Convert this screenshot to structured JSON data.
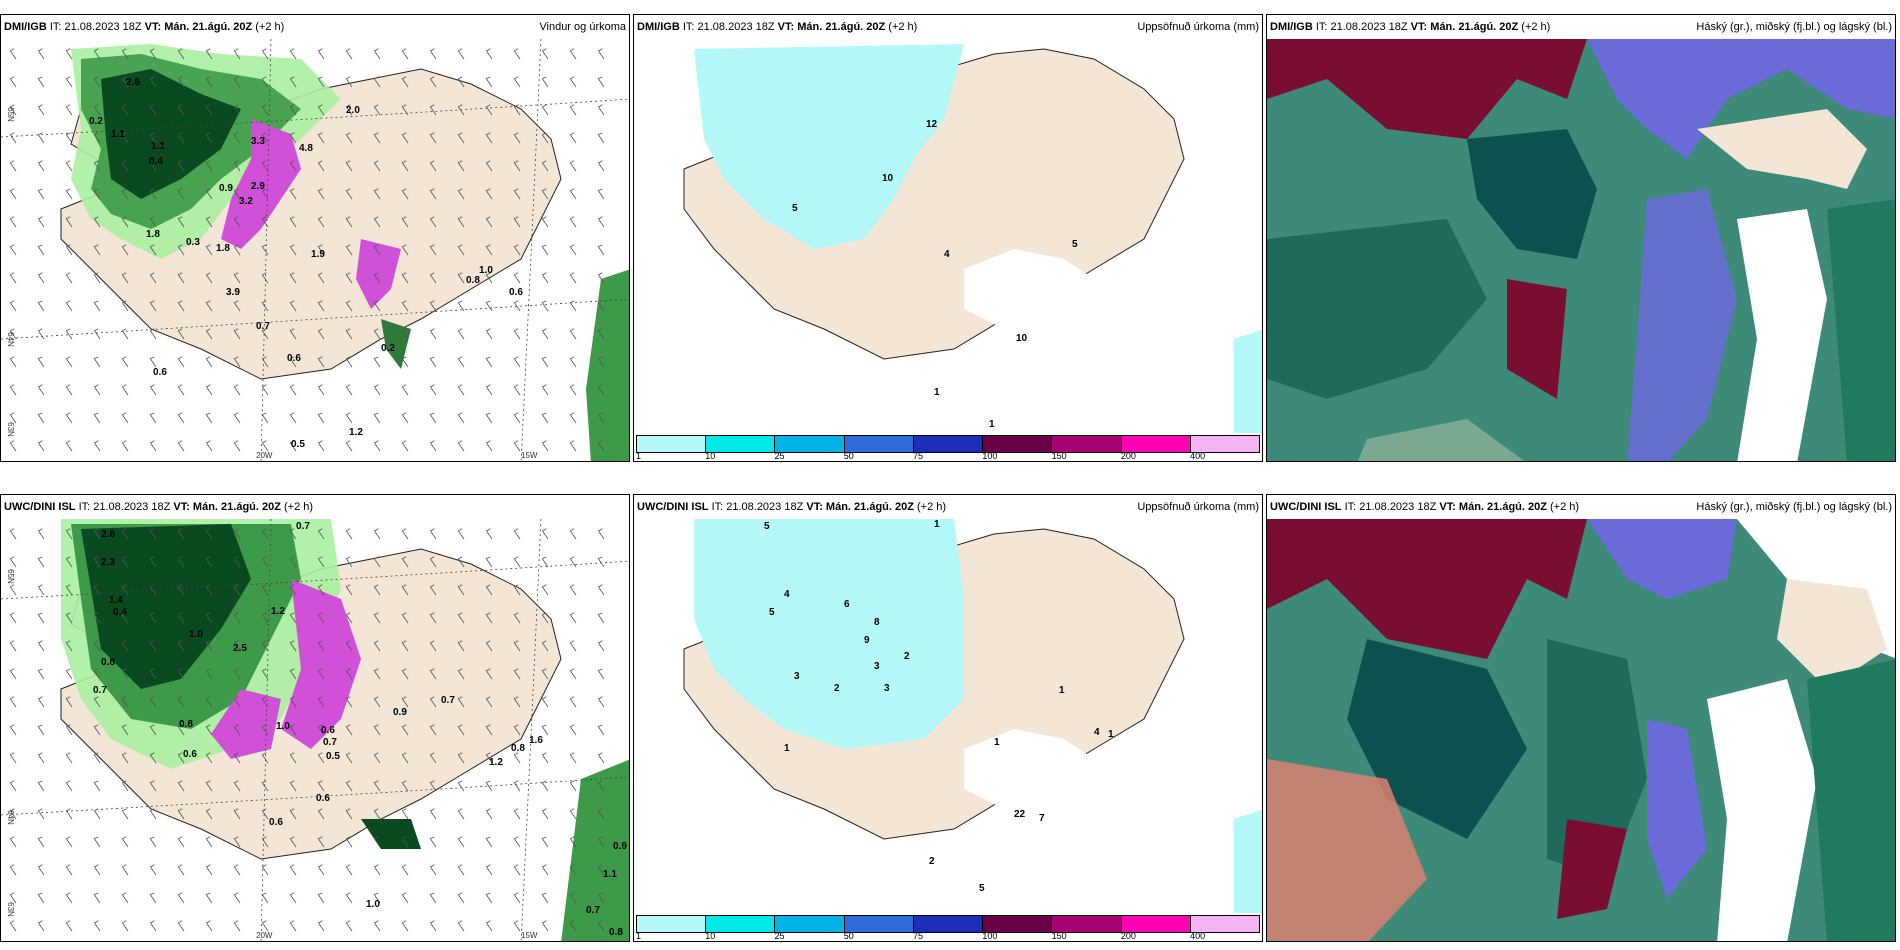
{
  "panels": [
    {
      "id": "p1",
      "model": "DMI/IGB",
      "it": "IT: 21.08.2023 18Z",
      "vt_label": "VT:",
      "vt": "Mán. 21.ágú. 20Z",
      "lead": "(+2 h)",
      "field": "Vindur og úrkoma",
      "axis": {
        "lat1": "65N",
        "lat2": "64N",
        "lat3": "63N",
        "lon1": "20W",
        "lon2": "15W"
      },
      "values": [
        "2.6",
        "0.2",
        "1.1",
        "0.4",
        "1.1",
        "3.3",
        "4.8",
        "0.9",
        "2.9",
        "3.2",
        "1.8",
        "0.3",
        "3.9",
        "1.8",
        "1.0",
        "0.6",
        "0.7",
        "0.6",
        "0.2",
        "0.6",
        "0.5",
        "1.2",
        "1.9",
        "0.8",
        "2.0"
      ]
    },
    {
      "id": "p2",
      "model": "DMI/IGB",
      "it": "IT: 21.08.2023 18Z",
      "vt_label": "VT:",
      "vt": "Mán. 21.ágú. 20Z",
      "lead": "(+2 h)",
      "field": "Uppsöfnuð úrkoma (mm)",
      "values": [
        "12",
        "10",
        "5",
        "4",
        "5",
        "10",
        "1",
        "1"
      ]
    },
    {
      "id": "p3",
      "model": "DMI/IGB",
      "it": "IT: 21.08.2023 18Z",
      "vt_label": "VT:",
      "vt": "Mán. 21.ágú. 20Z",
      "lead": "(+2 h)",
      "field": "Háský (gr.), miðský (fj.bl.) og lágský (bl.)"
    },
    {
      "id": "p4",
      "model": "UWC/DINI ISL",
      "it": "IT: 21.08.2023 18Z",
      "vt_label": "VT:",
      "vt": "Mán. 21.ágú. 20Z",
      "lead": "(+2 h)",
      "field": "",
      "axis": {
        "lat1": "65N",
        "lat2": "64N",
        "lat3": "63N",
        "lon1": "20W",
        "lon2": "15W"
      },
      "values": [
        "0.7",
        "2.6",
        "2.3",
        "1.4",
        "0.4",
        "1.0",
        "1.2",
        "2.5",
        "0.8",
        "0.7",
        "0.8",
        "1.6",
        "0.6",
        "1.0",
        "0.6",
        "0.7",
        "0.5",
        "0.6",
        "0.9",
        "1.2",
        "0.7",
        "0.8",
        "0.6",
        "1.0",
        "0.9",
        "0.7",
        "0.8",
        "1.1"
      ]
    },
    {
      "id": "p5",
      "model": "UWC/DINI ISL",
      "it": "IT: 21.08.2023 18Z",
      "vt_label": "VT:",
      "vt": "Mán. 21.ágú. 20Z",
      "lead": "(+2 h)",
      "field": "Uppsöfnuð úrkoma (mm)",
      "values": [
        "5",
        "1",
        "4",
        "5",
        "6",
        "8",
        "9",
        "3",
        "2",
        "3",
        "2",
        "1",
        "3",
        "22",
        "7",
        "1",
        "2",
        "5",
        "4",
        "1",
        "1"
      ]
    },
    {
      "id": "p6",
      "model": "UWC/DINI ISL",
      "it": "IT: 21.08.2023 18Z",
      "vt_label": "VT:",
      "vt": "Mán. 21.ágú. 20Z",
      "lead": "(+2 h)",
      "field": "Háský (gr.), miðský (fj.bl.) og lágský (bl.)"
    }
  ],
  "legend": {
    "colors": [
      "#b4f8f8",
      "#00e8e8",
      "#00b4e6",
      "#2f6cd8",
      "#1d2fb8",
      "#6a0045",
      "#a8006e",
      "#ff00b4",
      "#f4b4f4"
    ],
    "ticks": [
      "1",
      "10",
      "25",
      "50",
      "75",
      "100",
      "150",
      "200",
      "400"
    ]
  },
  "colors": {
    "land": "#f4e6d6",
    "precip_light": "#a8f0a0",
    "precip_dark": "#0a4a20",
    "precip_heavy": "#d050d8",
    "cloud_high": "#0d5050",
    "cloud_mid": "#6a6ad8",
    "cloud_low": "#7a0e30"
  }
}
